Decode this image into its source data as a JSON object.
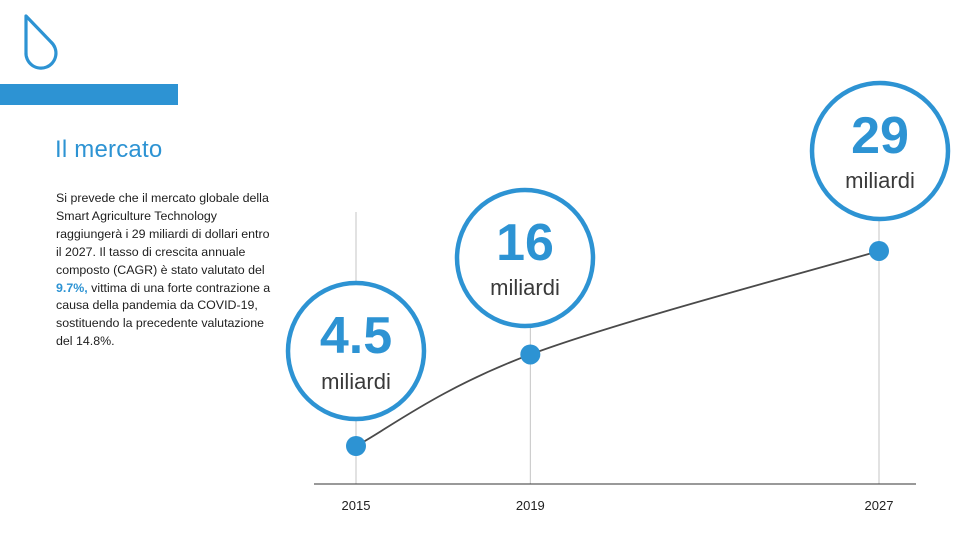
{
  "slide": {
    "title": "Il mercato",
    "text_before": "Si prevede che il mercato globale della Smart Agriculture Technology raggiungerà i 29 miliardi di dollari entro il 2027. Il tasso di crescita annuale composto (CAGR) è stato valutato del ",
    "highlight": "9.7%,",
    "text_after": " vittima di una forte contrazione a causa della pandemia da COVID-19, sostituendo la precedente valutazione del 14.8%."
  },
  "colors": {
    "accent": "#2d93d3",
    "line": "#4a4a4a",
    "gridline": "#c4c4c4",
    "axis": "#333333"
  },
  "logo_icon": "water-drop-icon",
  "chart_data": {
    "type": "line",
    "x": [
      2015,
      2019,
      2027
    ],
    "x_tick_labels": [
      "2015",
      "2019",
      "2027"
    ],
    "values": [
      4.5,
      16,
      29
    ],
    "value_labels": [
      "4.5",
      "16",
      "29"
    ],
    "unit_label": "miliardi",
    "title": "",
    "xlabel": "",
    "ylabel": "",
    "grid": "vertical lines at data points",
    "legend": "none"
  }
}
